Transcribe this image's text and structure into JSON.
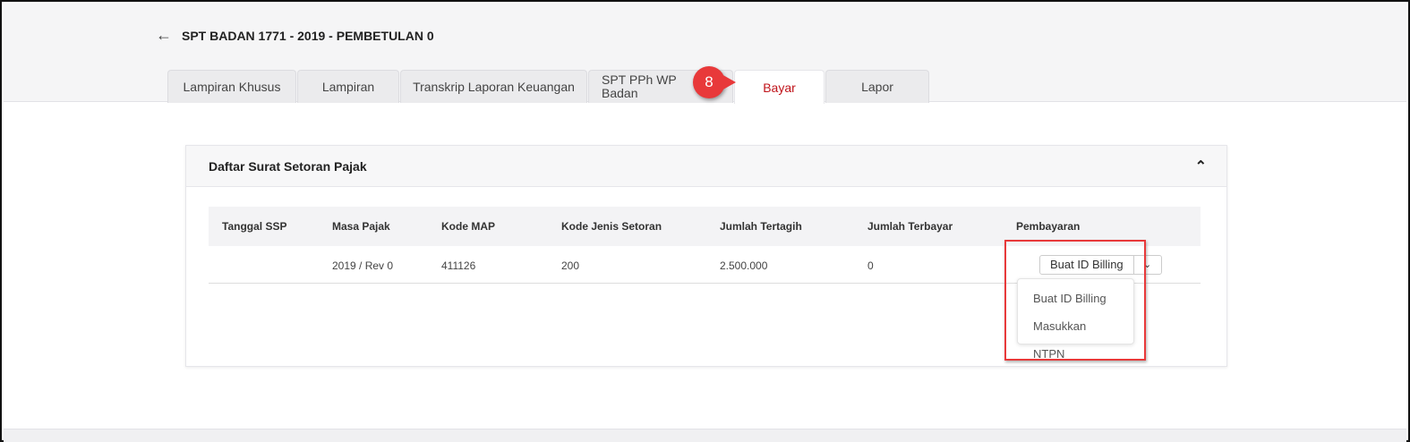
{
  "header": {
    "back_icon": "arrow-left-icon",
    "title": "SPT BADAN 1771 - 2019 - PEMBETULAN 0"
  },
  "tabs": [
    {
      "label": "Lampiran Khusus"
    },
    {
      "label": "Lampiran"
    },
    {
      "label": "Transkrip Laporan Keuangan"
    },
    {
      "label": "SPT PPh WP Badan"
    },
    {
      "label": "Bayar",
      "active": true
    },
    {
      "label": "Lapor"
    }
  ],
  "step_badge": "8",
  "card": {
    "title": "Daftar Surat Setoran Pajak",
    "collapse_icon": "chevron-up-icon"
  },
  "table": {
    "columns": [
      "Tanggal SSP",
      "Masa Pajak",
      "Kode MAP",
      "Kode Jenis Setoran",
      "Jumlah Tertagih",
      "Jumlah Terbayar",
      "Pembayaran"
    ],
    "rows": [
      [
        "",
        "2019 / Rev 0",
        "411126",
        "200",
        "2.500.000",
        "0"
      ]
    ]
  },
  "payment": {
    "button": "Buat ID Billing",
    "options": [
      "Buat ID Billing",
      "Masukkan NTPN"
    ]
  },
  "colors": {
    "accent": "#c0141b",
    "highlight": "#e8393a"
  }
}
